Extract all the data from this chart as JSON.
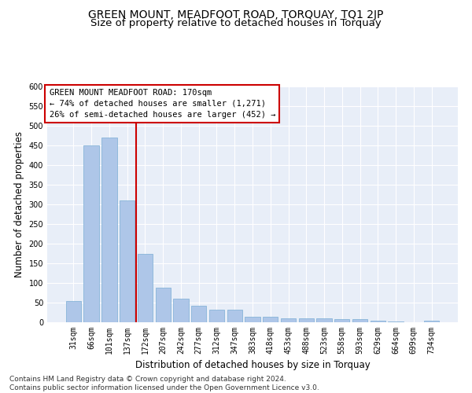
{
  "title": "GREEN MOUNT, MEADFOOT ROAD, TORQUAY, TQ1 2JP",
  "subtitle": "Size of property relative to detached houses in Torquay",
  "xlabel": "Distribution of detached houses by size in Torquay",
  "ylabel": "Number of detached properties",
  "categories": [
    "31sqm",
    "66sqm",
    "101sqm",
    "137sqm",
    "172sqm",
    "207sqm",
    "242sqm",
    "277sqm",
    "312sqm",
    "347sqm",
    "383sqm",
    "418sqm",
    "453sqm",
    "488sqm",
    "523sqm",
    "558sqm",
    "593sqm",
    "629sqm",
    "664sqm",
    "699sqm",
    "734sqm"
  ],
  "values": [
    55,
    450,
    470,
    310,
    175,
    88,
    60,
    42,
    32,
    33,
    15,
    15,
    10,
    10,
    10,
    8,
    8,
    4,
    3,
    0,
    4
  ],
  "bar_color": "#aec6e8",
  "bar_edgecolor": "#7aadd4",
  "vline_color": "#cc0000",
  "annotation_line1": "GREEN MOUNT MEADFOOT ROAD: 170sqm",
  "annotation_line2": "← 74% of detached houses are smaller (1,271)",
  "annotation_line3": "26% of semi-detached houses are larger (452) →",
  "annotation_box_color": "#ffffff",
  "annotation_box_edgecolor": "#cc0000",
  "ylim": [
    0,
    600
  ],
  "yticks": [
    0,
    50,
    100,
    150,
    200,
    250,
    300,
    350,
    400,
    450,
    500,
    550,
    600
  ],
  "background_color": "#e8eef8",
  "footer_line1": "Contains HM Land Registry data © Crown copyright and database right 2024.",
  "footer_line2": "Contains public sector information licensed under the Open Government Licence v3.0.",
  "title_fontsize": 10,
  "xlabel_fontsize": 8.5,
  "ylabel_fontsize": 8.5,
  "tick_fontsize": 7,
  "annotation_fontsize": 7.5,
  "footer_fontsize": 6.5
}
